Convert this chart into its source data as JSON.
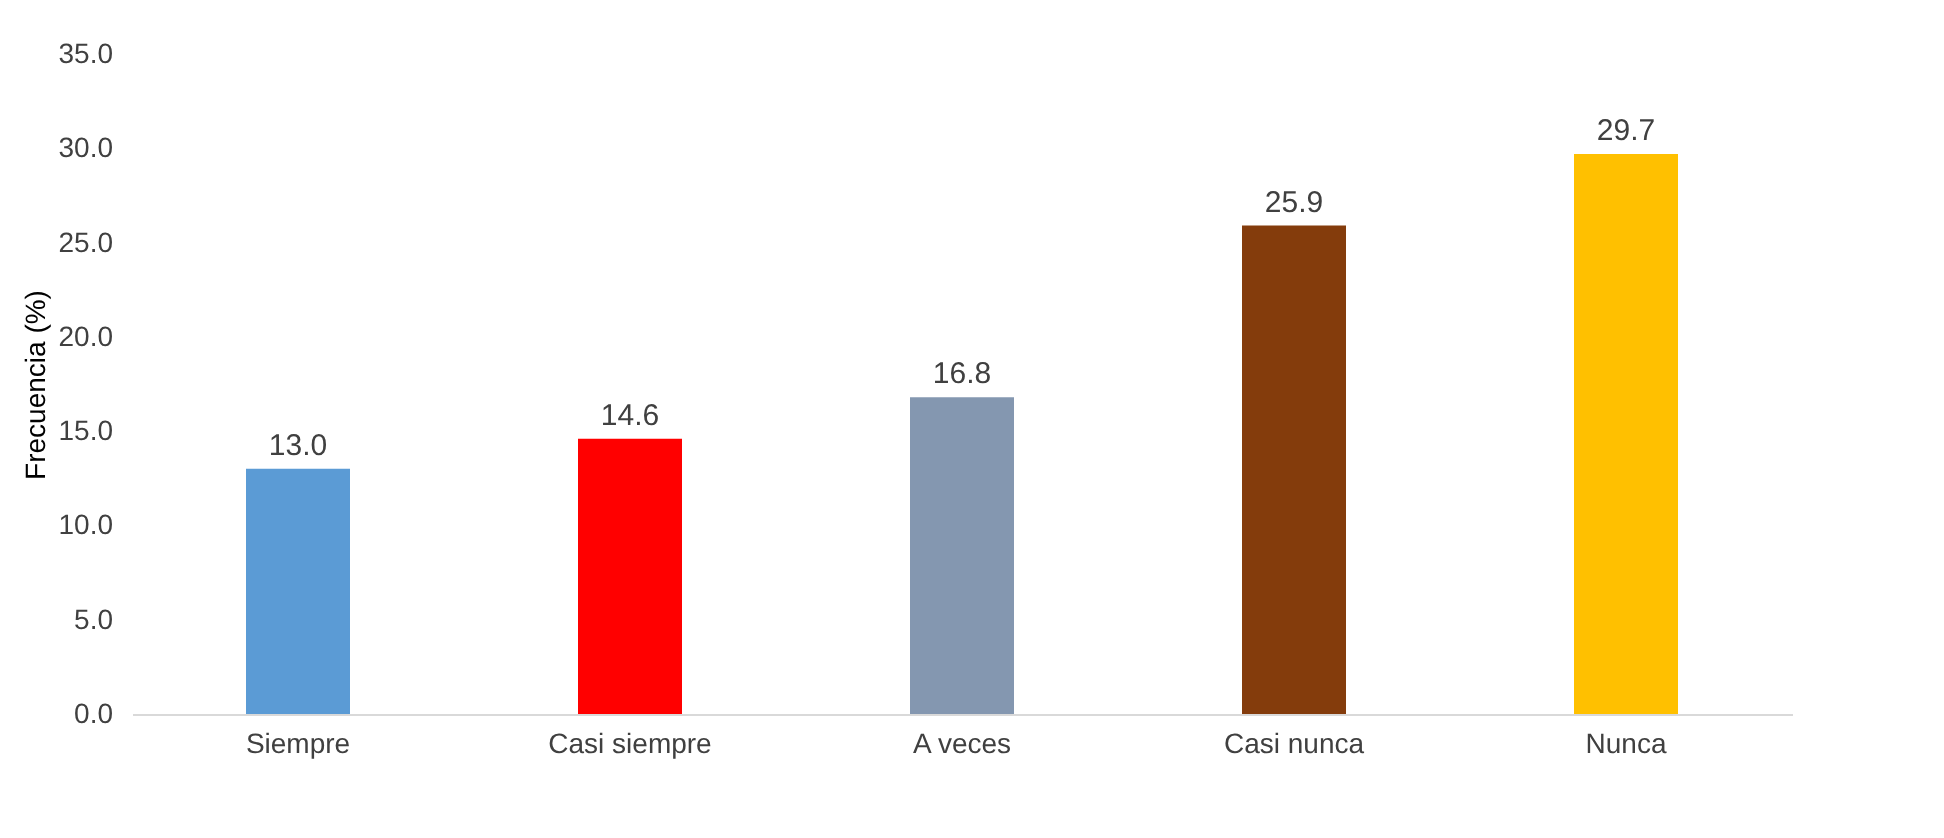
{
  "chart_data": {
    "type": "bar",
    "ylabel": "Frecuencia (%)",
    "categories": [
      "Siempre",
      "Casi siempre",
      "A veces",
      "Casi nunca",
      "Nunca"
    ],
    "values": [
      13.0,
      14.6,
      16.8,
      25.9,
      29.7
    ],
    "colors": [
      "#5b9bd5",
      "#ff0000",
      "#8497b0",
      "#843c0c",
      "#ffc000"
    ],
    "value_labels": [
      "13.0",
      "14.6",
      "16.8",
      "25.9",
      "29.7"
    ],
    "ylim": [
      0,
      35
    ],
    "yticks": [
      {
        "value": 0,
        "label": "0.0"
      },
      {
        "value": 5,
        "label": "5.0"
      },
      {
        "value": 10,
        "label": "10.0"
      },
      {
        "value": 15,
        "label": "15.0"
      },
      {
        "value": 20,
        "label": "20.0"
      },
      {
        "value": 25,
        "label": "25.0"
      },
      {
        "value": 30,
        "label": "30.0"
      },
      {
        "value": 35,
        "label": "35.0"
      }
    ],
    "grid": false
  }
}
